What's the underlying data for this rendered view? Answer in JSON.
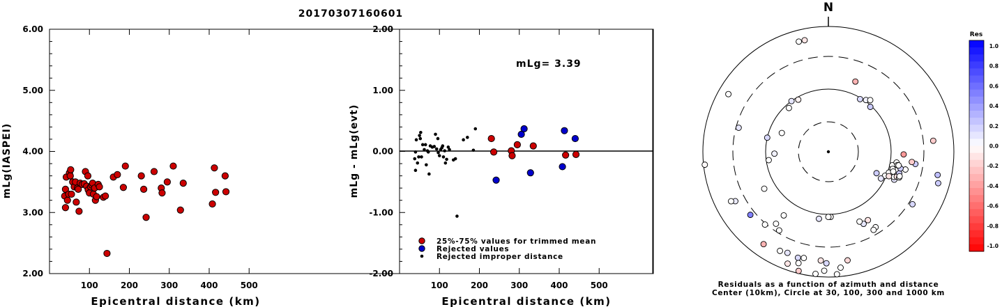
{
  "title": "20170307160601",
  "chart_data": [
    {
      "type": "scatter",
      "xlabel": "Epicentral distance (km)",
      "ylabel": "mLg(IASPEI)",
      "xlim": [
        0,
        600
      ],
      "ylim": [
        2.0,
        6.0
      ],
      "xticks": [
        "100",
        "200",
        "300",
        "400",
        "500"
      ],
      "yticks": [
        "2.00",
        "3.00",
        "4.00",
        "5.00",
        "6.00"
      ],
      "series": [
        {
          "points": [
            [
              38,
              3.27
            ],
            [
              40,
              3.38
            ],
            [
              40,
              3.08
            ],
            [
              42,
              3.58
            ],
            [
              45,
              3.2
            ],
            [
              48,
              3.3
            ],
            [
              50,
              3.65
            ],
            [
              52,
              3.6
            ],
            [
              53,
              3.7
            ],
            [
              55,
              3.3
            ],
            [
              58,
              3.5
            ],
            [
              62,
              3.42
            ],
            [
              65,
              3.5
            ],
            [
              67,
              3.17
            ],
            [
              70,
              3.4
            ],
            [
              72,
              3.38
            ],
            [
              74,
              3.02
            ],
            [
              77,
              3.48
            ],
            [
              82,
              3.46
            ],
            [
              87,
              3.47
            ],
            [
              90,
              3.67
            ],
            [
              93,
              3.43
            ],
            [
              96,
              3.6
            ],
            [
              97,
              3.37
            ],
            [
              100,
              3.32
            ],
            [
              103,
              3.42
            ],
            [
              106,
              3.45
            ],
            [
              108,
              3.48
            ],
            [
              110,
              3.3
            ],
            [
              113,
              3.4
            ],
            [
              115,
              3.2
            ],
            [
              118,
              3.26
            ],
            [
              122,
              3.46
            ],
            [
              125,
              3.42
            ],
            [
              135,
              3.25
            ],
            [
              140,
              3.27
            ],
            [
              144,
              2.33
            ],
            [
              160,
              3.58
            ],
            [
              170,
              3.62
            ],
            [
              185,
              3.41
            ],
            [
              190,
              3.76
            ],
            [
              230,
              3.6
            ],
            [
              236,
              3.38
            ],
            [
              242,
              2.92
            ],
            [
              262,
              3.67
            ],
            [
              280,
              3.4
            ],
            [
              282,
              3.32
            ],
            [
              295,
              3.5
            ],
            [
              310,
              3.76
            ],
            [
              328,
              3.04
            ],
            [
              335,
              3.48
            ],
            [
              408,
              3.14
            ],
            [
              413,
              3.73
            ],
            [
              416,
              3.33
            ],
            [
              440,
              3.6
            ],
            [
              442,
              3.34
            ]
          ]
        }
      ]
    },
    {
      "type": "scatter",
      "xlabel": "Epicentral distance (km)",
      "ylabel": "mLg - mLg(evt)",
      "xlim": [
        0,
        600
      ],
      "ylim": [
        -2.0,
        2.0
      ],
      "xticks": [
        "100",
        "200",
        "300",
        "400",
        "500"
      ],
      "yticks": [
        "-2.00",
        "-1.00",
        "0.00",
        "1.00",
        "2.00"
      ],
      "annotation": "mLg= 3.39",
      "legend": {
        "placement": "bottom-left",
        "entries": [
          "25%-75% values for trimmed mean",
          "Rejected values",
          "Rejected improper distance"
        ]
      },
      "series": [
        {
          "name": "25%-75% values for trimmed mean",
          "color": "#cc0000",
          "points": [
            [
              230,
              0.21
            ],
            [
              236,
              -0.01
            ],
            [
              280,
              0.01
            ],
            [
              282,
              -0.07
            ],
            [
              295,
              0.11
            ],
            [
              335,
              0.09
            ],
            [
              416,
              -0.06
            ],
            [
              442,
              -0.05
            ]
          ]
        },
        {
          "name": "Rejected values",
          "color": "#0000cc",
          "points": [
            [
              242,
              -0.47
            ],
            [
              305,
              0.28
            ],
            [
              312,
              0.37
            ],
            [
              328,
              -0.35
            ],
            [
              408,
              -0.25
            ],
            [
              413,
              0.34
            ],
            [
              440,
              0.21
            ]
          ]
        },
        {
          "name": "Rejected improper distance",
          "color": "#000000",
          "points": [
            [
              38,
              -0.12
            ],
            [
              40,
              -0.01
            ],
            [
              40,
              -0.31
            ],
            [
              42,
              0.19
            ],
            [
              45,
              -0.19
            ],
            [
              48,
              -0.09
            ],
            [
              50,
              0.26
            ],
            [
              52,
              0.21
            ],
            [
              53,
              0.31
            ],
            [
              55,
              -0.09
            ],
            [
              58,
              0.11
            ],
            [
              62,
              0.03
            ],
            [
              65,
              0.11
            ],
            [
              67,
              -0.22
            ],
            [
              70,
              0.01
            ],
            [
              72,
              -0.01
            ],
            [
              74,
              -0.37
            ],
            [
              77,
              0.09
            ],
            [
              82,
              0.07
            ],
            [
              87,
              0.08
            ],
            [
              90,
              0.28
            ],
            [
              93,
              0.04
            ],
            [
              96,
              0.21
            ],
            [
              97,
              -0.02
            ],
            [
              100,
              -0.07
            ],
            [
              103,
              0.03
            ],
            [
              106,
              0.06
            ],
            [
              108,
              0.09
            ],
            [
              110,
              -0.09
            ],
            [
              113,
              0.01
            ],
            [
              115,
              -0.19
            ],
            [
              118,
              -0.13
            ],
            [
              122,
              0.07
            ],
            [
              125,
              0.03
            ],
            [
              135,
              -0.14
            ],
            [
              140,
              -0.12
            ],
            [
              144,
              -1.06
            ],
            [
              160,
              0.19
            ],
            [
              170,
              0.23
            ],
            [
              185,
              0.02
            ],
            [
              190,
              0.37
            ]
          ]
        }
      ]
    },
    {
      "type": "polar-scatter",
      "north_label": "N",
      "caption_line1": "Residuals as a function of azimuth and distance",
      "caption_line2": "Center (10km), Circle at 30, 100, 300 and 1000 km",
      "colorbar": {
        "title": "Res",
        "labels": [
          "1.0",
          "0.8",
          "0.6",
          "0.4",
          "0.2",
          "0.0",
          "-0.2",
          "-0.4",
          "-0.6",
          "-0.8",
          "-1.0"
        ]
      },
      "points": [
        [
          21,
          0.6,
          -0.3
        ],
        [
          31,
          0.49,
          0.15
        ],
        [
          36,
          0.51,
          0.05
        ],
        [
          39,
          0.53,
          0.0
        ],
        [
          43,
          0.49,
          0.2
        ],
        [
          330,
          0.48,
          -0.05
        ],
        [
          324,
          0.5,
          0.1
        ],
        [
          318,
          0.47,
          0.0
        ],
        [
          345,
          0.91,
          0.0
        ],
        [
          348,
          0.91,
          -0.1
        ],
        [
          300,
          0.92,
          0.0
        ],
        [
          264,
          0.99,
          -0.02
        ],
        [
          268,
          0.43,
          0.05
        ],
        [
          262,
          0.48,
          0.0
        ],
        [
          240,
          0.59,
          0.0
        ],
        [
          242,
          0.84,
          0.08
        ],
        [
          231,
          0.8,
          0.5
        ],
        [
          283,
          0.5,
          0.15
        ],
        [
          292,
          0.4,
          0.0
        ],
        [
          285,
          0.74,
          0.1
        ],
        [
          98,
          0.7,
          0.2
        ],
        [
          103,
          0.63,
          0.0
        ],
        [
          97,
          0.67,
          -0.2
        ],
        [
          113,
          0.49,
          0.0
        ],
        [
          114,
          0.42,
          0.2
        ],
        [
          117,
          0.47,
          0.1
        ],
        [
          113,
          0.57,
          0.1
        ],
        [
          111,
          0.56,
          0.0
        ],
        [
          109,
          0.51,
          0.0
        ],
        [
          102,
          0.52,
          0.0
        ],
        [
          105,
          0.53,
          0.0
        ],
        [
          107,
          0.54,
          0.0
        ],
        [
          110,
          0.58,
          -0.1
        ],
        [
          112,
          0.52,
          -0.1
        ],
        [
          99,
          0.55,
          0.0
        ],
        [
          101,
          0.56,
          0.0
        ],
        [
          107,
          0.59,
          0.2
        ],
        [
          110,
          0.6,
          0.0
        ],
        [
          103,
          0.59,
          0.2
        ],
        [
          101,
          0.57,
          0.0
        ],
        [
          84,
          0.84,
          -0.2
        ],
        [
          106,
          0.91,
          0.2
        ],
        [
          122,
          0.79,
          0.15
        ],
        [
          92,
          0.6,
          -0.4
        ],
        [
          109,
          0.6,
          0.0
        ],
        [
          102,
          0.89,
          0.25
        ],
        [
          178,
          0.52,
          -0.01
        ],
        [
          188,
          0.54,
          0.1
        ],
        [
          193,
          0.87,
          0.0
        ],
        [
          184,
          0.87,
          -0.1
        ],
        [
          181,
          0.89,
          0.15
        ],
        [
          174,
          0.93,
          0.0
        ],
        [
          170,
          0.88,
          -0.15
        ],
        [
          196,
          0.88,
          0.15
        ],
        [
          202,
          0.87,
          0.1
        ],
        [
          216,
          0.71,
          0.0
        ],
        [
          212,
          0.74,
          0.0
        ],
        [
          215,
          0.62,
          0.0
        ],
        [
          243,
          0.87,
          0.0
        ],
        [
          148,
          0.71,
          0.0
        ],
        [
          150,
          0.72,
          0.0
        ],
        [
          154,
          0.64,
          0.1
        ],
        [
          156,
          0.61,
          0.0
        ],
        [
          150,
          0.63,
          -0.1
        ],
        [
          215,
          0.9,
          -0.3
        ],
        [
          221,
          0.77,
          0.0
        ],
        [
          195,
          0.92,
          0.0
        ],
        [
          206,
          0.88,
          0.0
        ],
        [
          182,
          0.95,
          0.0
        ],
        [
          200,
          0.95,
          -0.1
        ],
        [
          194,
          0.98,
          -0.2
        ],
        [
          180,
          0.52,
          0.0
        ],
        [
          176,
          0.98,
          0.0
        ],
        [
          186,
          0.98,
          0.0
        ]
      ]
    }
  ]
}
